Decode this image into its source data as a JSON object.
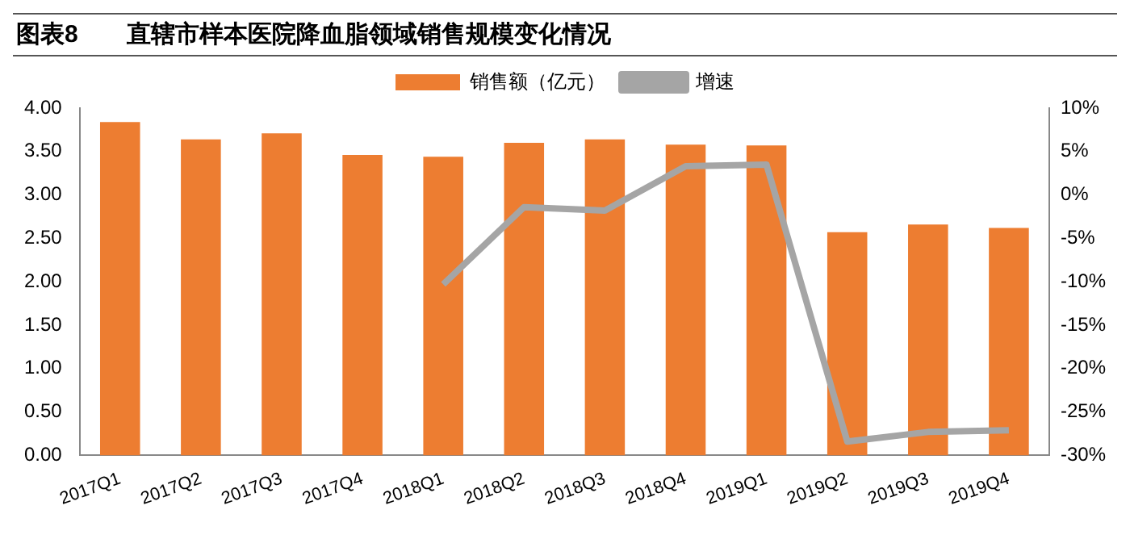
{
  "chart_data": {
    "type": "bar",
    "title": "图表8　　直辖市样本医院降血脂领域销售规模变化情况",
    "categories": [
      "2017Q1",
      "2017Q2",
      "2017Q3",
      "2017Q4",
      "2018Q1",
      "2018Q2",
      "2018Q3",
      "2018Q4",
      "2019Q1",
      "2019Q2",
      "2019Q3",
      "2019Q4"
    ],
    "series": [
      {
        "name": "销售额（亿元）",
        "color": "#ed7d31",
        "values": [
          3.84,
          3.64,
          3.71,
          3.46,
          3.44,
          3.6,
          3.64,
          3.58,
          3.57,
          2.57,
          2.66,
          2.62
        ]
      },
      {
        "name": "增速",
        "type": "line",
        "axis": "y2",
        "color": "#a5a5a5",
        "marker": "none",
        "values": [
          null,
          null,
          null,
          null,
          -10.3,
          -1.4,
          -1.8,
          3.3,
          3.5,
          -28.4,
          -27.3,
          -27.1
        ]
      }
    ],
    "ylim": [
      0,
      4
    ],
    "yticks": [
      {
        "value": 0,
        "label": "0.00"
      },
      {
        "value": 0.5,
        "label": "0.50"
      },
      {
        "value": 1,
        "label": "1.00"
      },
      {
        "value": 1.5,
        "label": "1.50"
      },
      {
        "value": 2,
        "label": "2.00"
      },
      {
        "value": 2.5,
        "label": "2.50"
      },
      {
        "value": 3,
        "label": "3.00"
      },
      {
        "value": 3.5,
        "label": "3.50"
      },
      {
        "value": 4,
        "label": "4.00"
      }
    ],
    "y2lim": [
      -30,
      10
    ],
    "y2ticks": [
      {
        "value": -30,
        "label": "-30%"
      },
      {
        "value": -25,
        "label": "-25%"
      },
      {
        "value": -20,
        "label": "-20%"
      },
      {
        "value": -15,
        "label": "-15%"
      },
      {
        "value": -10,
        "label": "-10%"
      },
      {
        "value": -5,
        "label": "-5%"
      },
      {
        "value": 0,
        "label": "0%"
      },
      {
        "value": 5,
        "label": "5%"
      },
      {
        "value": 10,
        "label": "10%"
      }
    ],
    "grid": false,
    "legend": "top"
  }
}
